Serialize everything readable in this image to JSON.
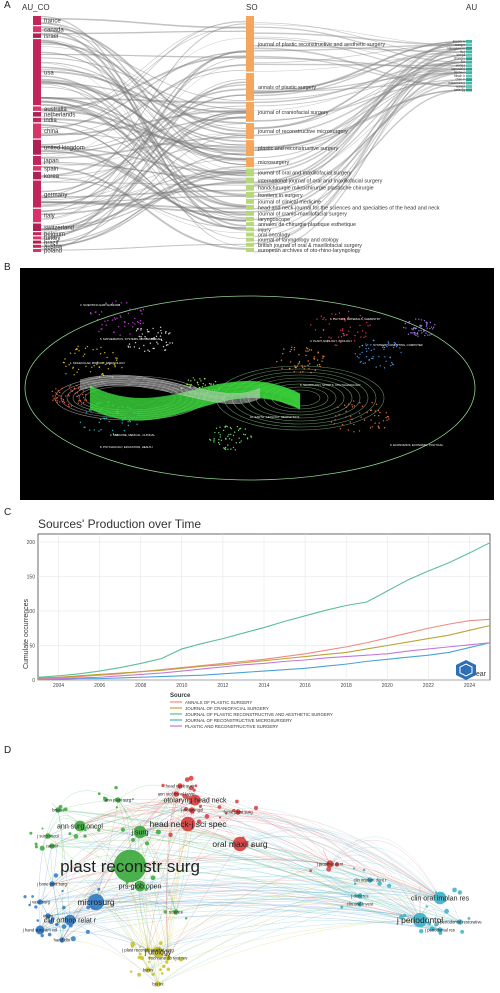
{
  "panel_labels": [
    "A",
    "B",
    "C",
    "D"
  ],
  "panelA": {
    "headers": {
      "left": "AU_CO",
      "mid": "SO",
      "right": "AU"
    },
    "countries": [
      {
        "name": "france",
        "w": 3
      },
      {
        "name": "canada",
        "w": 2
      },
      {
        "name": "israel",
        "w": 1.5
      },
      {
        "name": "usa",
        "w": 22
      },
      {
        "name": "australia",
        "w": 1.5
      },
      {
        "name": "netherlands",
        "w": 1.5
      },
      {
        "name": "india",
        "w": 1.5
      },
      {
        "name": "china",
        "w": 5
      },
      {
        "name": "united kingdom",
        "w": 5
      },
      {
        "name": "japan",
        "w": 3
      },
      {
        "name": "spain",
        "w": 1.5
      },
      {
        "name": "korea",
        "w": 2.5
      },
      {
        "name": "germany",
        "w": 9
      },
      {
        "name": "italy",
        "w": 4.5
      },
      {
        "name": "switzerland",
        "w": 2.5
      },
      {
        "name": "belgium",
        "w": 1
      },
      {
        "name": "turkey",
        "w": 1
      },
      {
        "name": "brazil",
        "w": 1
      },
      {
        "name": "austria",
        "w": 1
      },
      {
        "name": "poland",
        "w": 1
      }
    ],
    "sources": [
      {
        "name": "journal of plastic reconstructive and aesthetic surgery",
        "w": 14
      },
      {
        "name": "annals of plastic surgery",
        "w": 7
      },
      {
        "name": "journal of craniofacial surgery",
        "w": 5
      },
      {
        "name": "journal of reconstructive microsurgery",
        "w": 4
      },
      {
        "name": "plastic and reconstructive surgery",
        "w": 4
      },
      {
        "name": "microsurgery",
        "w": 2.5
      },
      {
        "name": "journal of oral and maxillofacial surgery",
        "w": 2
      },
      {
        "name": "international journal of oral and maxillofacial surgery",
        "w": 1.5
      },
      {
        "name": "handchirurgie mikrochirurgie plastische chirurgie",
        "w": 1.5
      },
      {
        "name": "frontiers in surgery",
        "w": 1.5
      },
      {
        "name": "journal of clinical medicine",
        "w": 1.2
      },
      {
        "name": "head and neck-journal for the sciences and specialties of the head and neck",
        "w": 1.2
      },
      {
        "name": "journal of cranio-maxillofacial surgery",
        "w": 1.2
      },
      {
        "name": "laryngoscope",
        "w": 1
      },
      {
        "name": "annales de chirurgie plastique esthetique",
        "w": 1
      },
      {
        "name": "injury",
        "w": 1
      },
      {
        "name": "oral oncology",
        "w": 1
      },
      {
        "name": "journal of laryngology and otology",
        "w": 1
      },
      {
        "name": "british journal of oral & maxillofacial surgery",
        "w": 1
      },
      {
        "name": "european archives of oto-rhino-laryngology",
        "w": 1
      }
    ],
    "authors": [
      {
        "name": "kneser u"
      },
      {
        "name": "wang x"
      },
      {
        "name": "nakagawa m"
      },
      {
        "name": "liu j"
      },
      {
        "name": "kim ja"
      },
      {
        "name": "zhang y"
      },
      {
        "name": "li x"
      },
      {
        "name": "wang j"
      },
      {
        "name": "hamada y"
      },
      {
        "name": "hirche c"
      },
      {
        "name": "fritsch h"
      },
      {
        "name": "chen h"
      },
      {
        "name": "nakamura y"
      },
      {
        "name": "wang l"
      },
      {
        "name": "seiler jg"
      }
    ]
  },
  "panelB": {
    "cluster_labels": [
      "3. SCIENTIFIC EARTH, BRAND",
      "1. MOLECULAR, BIOLOGY, IMMUNOLOGY",
      "5. MATHEMATICS, SYSTEMS, MATHEMATICAL",
      "2. MEDICINE, MEDICAL, CLINICAL",
      "8. PSYCHOLOGY, EDUCATION, HEALTH",
      "6. PHYSICS, MATERIALS, CHEMISTRY",
      "4. PLANT, ECOLOGY, ZOOLOGY",
      "7. SYSTEMS, COMPUTING, COMPUTER",
      "9. ECONOMICS, ECONOMIC, POLITICAL",
      "10. EARTH, GEOLOGY, GEOPHYSICS",
      "6. NEUROLOGY, SPORTS, OPHTHALMOLOGY"
    ]
  },
  "chart_data": {
    "type": "line",
    "title": "Sources' Production over Time",
    "xlabel": "Year",
    "ylabel": "Cumulate occurrences",
    "xlim": [
      2003,
      2025
    ],
    "ylim": [
      0,
      200
    ],
    "x_ticks": [
      2004,
      2006,
      2008,
      2010,
      2012,
      2014,
      2016,
      2018,
      2020,
      2022,
      2024
    ],
    "y_ticks": [
      0,
      50,
      100,
      150,
      200
    ],
    "grid": true,
    "legend_title": "Source",
    "legend_position": "bottom",
    "x": [
      2003,
      2004,
      2005,
      2006,
      2007,
      2008,
      2009,
      2010,
      2011,
      2012,
      2013,
      2014,
      2015,
      2016,
      2017,
      2018,
      2019,
      2020,
      2021,
      2022,
      2023,
      2024,
      2025
    ],
    "series": [
      {
        "name": "ANNALS OF PLASTIC SURGERY",
        "color": "#f08a86",
        "values": [
          2,
          3,
          5,
          7,
          9,
          12,
          15,
          18,
          21,
          24,
          27,
          30,
          34,
          38,
          43,
          48,
          54,
          61,
          68,
          75,
          81,
          86,
          88
        ]
      },
      {
        "name": "JOURNAL OF CRANIOFACIAL SURGERY",
        "color": "#b8a53a",
        "values": [
          3,
          4,
          6,
          8,
          10,
          12,
          14,
          17,
          20,
          22,
          25,
          28,
          31,
          34,
          37,
          40,
          45,
          50,
          55,
          60,
          65,
          72,
          79
        ]
      },
      {
        "name": "JOURNAL OF PLASTIC RECONSTRUCTIVE AND AESTHETIC SURGERY",
        "color": "#5bbf94",
        "values": [
          4,
          6,
          9,
          13,
          18,
          24,
          31,
          45,
          53,
          60,
          68,
          76,
          85,
          93,
          101,
          108,
          113,
          129,
          145,
          158,
          170,
          184,
          199
        ]
      },
      {
        "name": "JOURNAL OF RECONSTRUCTIVE MICROSURGERY",
        "color": "#4ba3d6",
        "values": [
          1,
          1,
          2,
          2,
          3,
          4,
          5,
          6,
          7,
          9,
          11,
          13,
          15,
          17,
          20,
          23,
          27,
          30,
          33,
          36,
          40,
          47,
          54
        ]
      },
      {
        "name": "PLASTIC AND RECONSTRUCTIVE SURGERY",
        "color": "#c27ad6",
        "values": [
          1,
          2,
          3,
          4,
          6,
          8,
          10,
          13,
          16,
          19,
          22,
          24,
          27,
          29,
          32,
          34,
          36,
          38,
          42,
          45,
          48,
          51,
          54
        ]
      }
    ]
  },
  "panelD": {
    "nodes": [
      {
        "label": "plast reconstr surg",
        "color": "#3aa83a",
        "size": 18
      },
      {
        "label": "oral maxil surg",
        "color": "#d93a3a",
        "size": 8
      },
      {
        "label": "head neck-j sci spec",
        "color": "#d93a3a",
        "size": 8
      },
      {
        "label": "otolaryng head neck",
        "color": "#d93a3a",
        "size": 6
      },
      {
        "label": "j periodontol",
        "color": "#3ab0c8",
        "size": 8
      },
      {
        "label": "clin oral implan res",
        "color": "#3ab0c8",
        "size": 7
      },
      {
        "label": "microsurg",
        "color": "#2e79c4",
        "size": 9
      },
      {
        "label": "ann surg oncol",
        "color": "#3aa83a",
        "size": 6
      },
      {
        "label": "j urology",
        "color": "#c8c02c",
        "size": 6
      },
      {
        "label": "clin orthop relat r",
        "color": "#2e79c4",
        "size": 6
      },
      {
        "label": "j hand surg-am vol",
        "color": "#2e79c4",
        "size": 5
      },
      {
        "label": "j surg",
        "color": "#3aa83a",
        "size": 7
      },
      {
        "label": "prs-glob open",
        "color": "#3aa83a",
        "size": 6
      },
      {
        "label": "j prosthet dent",
        "color": "#d93a3a",
        "size": 4
      },
      {
        "label": "head neck surg",
        "color": "#d93a3a",
        "size": 3
      },
      {
        "label": "j otolaryngol",
        "color": "#d93a3a",
        "size": 3
      },
      {
        "label": "ann otol rhinol laryn",
        "color": "#d93a3a",
        "size": 3
      },
      {
        "label": "ann plast surg",
        "color": "#3aa83a",
        "size": 3
      },
      {
        "label": "breast",
        "color": "#3aa83a",
        "size": 3
      },
      {
        "label": "cancer",
        "color": "#3aa83a",
        "size": 3
      },
      {
        "label": "j surg oncol",
        "color": "#3aa83a",
        "size": 3
      },
      {
        "label": "j vasc surg",
        "color": "#2e79c4",
        "size": 3
      },
      {
        "label": "j bone joint surg",
        "color": "#2e79c4",
        "size": 3
      },
      {
        "label": "injury",
        "color": "#2e79c4",
        "size": 3
      },
      {
        "label": "hand clin",
        "color": "#2e79c4",
        "size": 3
      },
      {
        "label": "burns",
        "color": "#c8c02c",
        "size": 3
      },
      {
        "label": "bju int",
        "color": "#c8c02c",
        "size": 3
      },
      {
        "label": "j plast reconstr aesthet surg",
        "color": "#c8c02c",
        "size": 3
      },
      {
        "label": "cochrane db syst rev",
        "color": "#c8c02c",
        "size": 3
      },
      {
        "label": "j periodontol restorative",
        "color": "#3ab0c8",
        "size": 3
      },
      {
        "label": "j periodontal res",
        "color": "#3ab0c8",
        "size": 3
      },
      {
        "label": "clin oral invest",
        "color": "#3ab0c8",
        "size": 3
      },
      {
        "label": "j dent res",
        "color": "#3ab0c8",
        "size": 3
      },
      {
        "label": "clin implant dent r",
        "color": "#3ab0c8",
        "size": 3
      },
      {
        "label": "facial plast surg",
        "color": "#d93a3a",
        "size": 3
      },
      {
        "label": "science",
        "color": "#3aa83a",
        "size": 3
      }
    ]
  }
}
